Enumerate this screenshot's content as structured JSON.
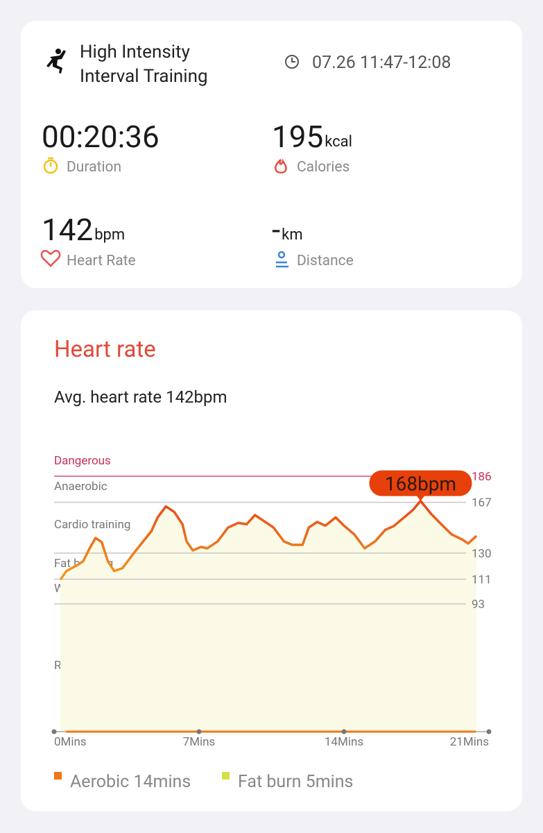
{
  "workout": {
    "title_lines": [
      "High Intensity",
      "Interval Training"
    ],
    "time": "07.26 11:47-12:08",
    "stats": [
      {
        "value": "00:20:36",
        "unit": null,
        "label": "Duration"
      },
      {
        "value": "195",
        "unit": "kcal",
        "label": "Calories"
      },
      {
        "value": "142",
        "unit": "bpm",
        "label": "Heart Rate"
      },
      {
        "value": "-",
        "unit": "km",
        "label": "Distance"
      }
    ]
  },
  "chart_data": {
    "type": "line",
    "title": "Heart rate",
    "subtitle": "Avg. heart rate 142bpm",
    "zones": [
      "Dangerous",
      "Anaerobic",
      "Cardio training",
      "Fat burning",
      "Warm up",
      "Resting"
    ],
    "xlim": [
      0,
      21
    ],
    "ylim": [
      0,
      186
    ],
    "xticks": [
      {
        "value": 0,
        "label": "0Mins"
      },
      {
        "value": 7,
        "label": "7Mins"
      },
      {
        "value": 14,
        "label": "14Mins"
      },
      {
        "value": 21,
        "label": "21Mins"
      }
    ],
    "yticks": [
      186,
      167,
      130,
      111,
      93
    ],
    "series": [
      {
        "name": "Heart rate",
        "color": "#f06a10",
        "x": [
          0.3,
          0.6,
          1.1,
          1.4,
          1.7,
          2.0,
          2.3,
          2.6,
          2.9,
          3.3,
          3.8,
          4.3,
          4.7,
          5.0,
          5.4,
          5.8,
          6.2,
          6.4,
          6.7,
          7.1,
          7.4,
          7.9,
          8.4,
          8.9,
          9.3,
          9.7,
          10.1,
          10.6,
          11.1,
          11.5,
          12.0,
          12.3,
          12.7,
          13.1,
          13.6,
          14.0,
          14.5,
          15.0,
          15.5,
          16.0,
          16.4,
          16.8,
          17.3,
          17.7,
          18.2,
          18.7,
          19.2,
          19.7,
          20.0,
          20.4
        ],
        "values": [
          110.7,
          117,
          121,
          124,
          133,
          141,
          138,
          124,
          117,
          119,
          129,
          138.5,
          146,
          156,
          164,
          160,
          151,
          138.5,
          132,
          134.5,
          133.5,
          138.5,
          148.6,
          152,
          151,
          157.7,
          153.7,
          148.6,
          138.5,
          136,
          136,
          148.6,
          152.7,
          150,
          156,
          150,
          143.6,
          133.5,
          138.5,
          147,
          149.6,
          154.7,
          161,
          168,
          158.7,
          151,
          143.6,
          140,
          137,
          142.6
        ]
      }
    ],
    "peak": {
      "x": 17.7,
      "value": 168,
      "label": "168bpm"
    },
    "legend": [
      {
        "name": "Aerobic 14mins",
        "color": "#f07818"
      },
      {
        "name": "Fat burn 5mins",
        "color": "#d4e04a"
      }
    ]
  }
}
